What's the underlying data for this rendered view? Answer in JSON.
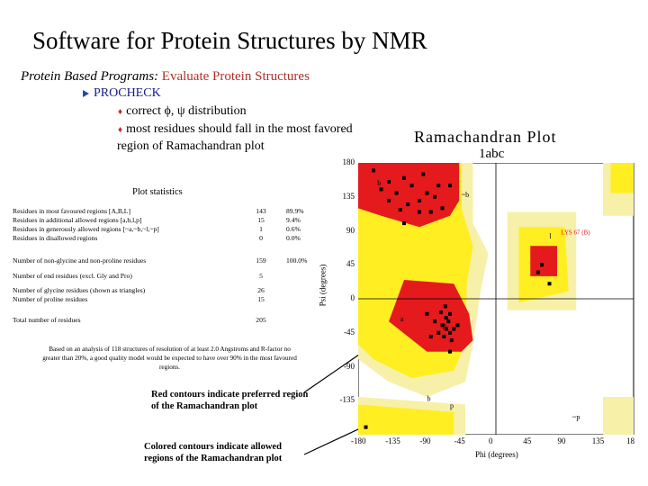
{
  "slide": {
    "title": "Software for Protein Structures by NMR",
    "subtitle_prefix": "Protein Based Programs:",
    "subtitle_rest": "Evaluate Protein Structures",
    "program": "PROCHECK",
    "bullets": [
      "correct ϕ, ψ distribution",
      "most residues should fall in the most favored",
      "region of Ramachandran plot"
    ]
  },
  "stats": {
    "title": "Plot statistics",
    "rows": [
      {
        "label": "Residues in most favoured regions  [A,B,L]",
        "count": "143",
        "pct": "89.9%"
      },
      {
        "label": "Residues in additional allowed regions  [a,b,l,p]",
        "count": "15",
        "pct": "9.4%"
      },
      {
        "label": "Residues in generously allowed regions  [~a,~b,~l,~p]",
        "count": "1",
        "pct": "0.6%"
      },
      {
        "label": "Residues in disallowed regions",
        "count": "0",
        "pct": "0.0%"
      },
      {
        "label": "Number of non-glycine and non-proline residues",
        "count": "159",
        "pct": "100.0%"
      },
      {
        "label": "Number of end residues (excl. Gly and Pro)",
        "count": "5",
        "pct": ""
      },
      {
        "label": "Number of glycine residues (shown as triangles)",
        "count": "26",
        "pct": ""
      },
      {
        "label": "Number of proline residues",
        "count": "15",
        "pct": ""
      },
      {
        "label": "Total number of residues",
        "count": "205",
        "pct": ""
      }
    ],
    "note": "Based on an analysis of 118 structures of resolution of at least 2.0 Angstroms and R-factor no greater than 20%, a good quality model would be expected to have over 90% in the most favoured regions."
  },
  "captions": {
    "red": "Red contours indicate preferred region of the Ramachandran plot",
    "colored": "Colored contours indicate allowed regions of the Ramachandran plot"
  },
  "plot": {
    "title": "Ramachandran Plot",
    "subtitle": "1abc",
    "xlabel": "Phi (degrees)",
    "ylabel": "Psi (degrees)",
    "xticks": [
      "-180",
      "-135",
      "-90",
      "-45",
      "0",
      "45",
      "90",
      "135",
      "18"
    ],
    "yticks": [
      "180",
      "135",
      "90",
      "45",
      "0",
      "-45",
      "-90",
      "-135"
    ],
    "region_labels": [
      "b",
      "b",
      "a",
      "l",
      "A",
      "p",
      "~b",
      "~p"
    ],
    "annotation": "LYS 67 (B)",
    "colors": {
      "core": "#e41a1c",
      "allowed": "#ffee22",
      "generous": "#f7f0a8",
      "disallowed": "#ffffff"
    }
  },
  "chart_data": {
    "type": "scatter",
    "title": "Ramachandran Plot",
    "subtitle": "1abc",
    "xlabel": "Phi (degrees)",
    "ylabel": "Psi (degrees)",
    "xlim": [
      -180,
      180
    ],
    "ylim": [
      -180,
      180
    ],
    "grid": false,
    "series": [
      {
        "name": "",
        "points": [
          [
            -120,
            160
          ],
          [
            -110,
            150
          ],
          [
            -130,
            140
          ],
          [
            -100,
            130
          ],
          [
            -140,
            130
          ],
          [
            -90,
            140
          ],
          [
            -115,
            125
          ],
          [
            -125,
            118
          ],
          [
            -75,
            150
          ],
          [
            -80,
            135
          ],
          [
            -70,
            120
          ],
          [
            -85,
            115
          ],
          [
            -140,
            155
          ],
          [
            -95,
            165
          ],
          [
            -60,
            150
          ],
          [
            -150,
            145
          ],
          [
            -65,
            -40
          ],
          [
            -60,
            -45
          ],
          [
            -70,
            -35
          ],
          [
            -65,
            -25
          ],
          [
            -55,
            -40
          ],
          [
            -75,
            -45
          ],
          [
            -68,
            -50
          ],
          [
            -62,
            -30
          ],
          [
            -60,
            -20
          ],
          [
            -80,
            -30
          ],
          [
            -72,
            -18
          ],
          [
            -58,
            -55
          ],
          [
            -85,
            -50
          ],
          [
            -50,
            -35
          ],
          [
            -90,
            -20
          ],
          [
            -66,
            -10
          ],
          [
            -100,
            115
          ],
          [
            -120,
            100
          ],
          [
            60,
            45
          ],
          [
            55,
            35
          ],
          [
            -160,
            170
          ],
          [
            -170,
            -170
          ],
          [
            -60,
            -70
          ],
          [
            70,
            20
          ]
        ]
      }
    ]
  }
}
